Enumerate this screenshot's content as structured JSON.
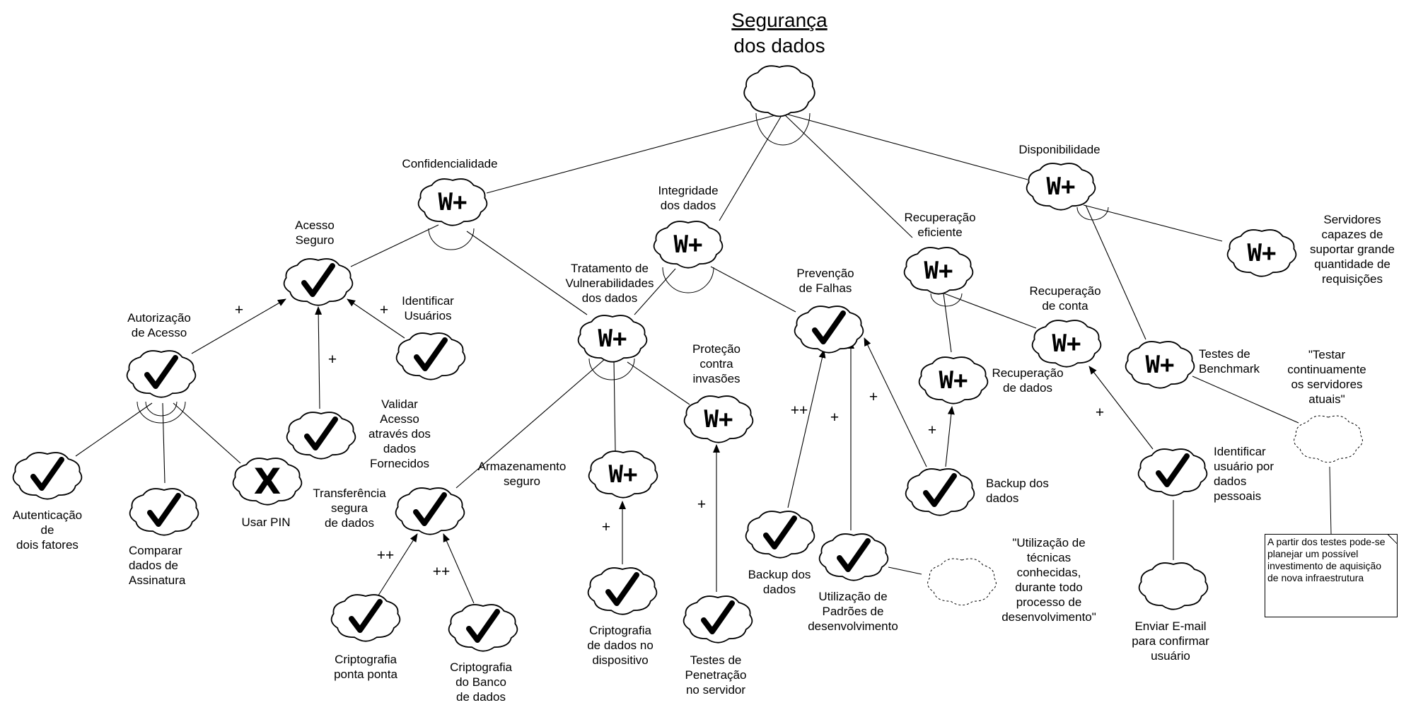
{
  "diagram": {
    "title_line1": "Segurança",
    "title_line2": "dos dados",
    "nodes": [
      {
        "id": "root",
        "lines": [],
        "type": "cloud",
        "glyph": ""
      },
      {
        "id": "conf",
        "lines": [
          "Confidencialidade"
        ],
        "type": "cloud",
        "glyph": "W+"
      },
      {
        "id": "integ",
        "lines": [
          "Integridade",
          "dos dados"
        ],
        "type": "cloud",
        "glyph": "W+"
      },
      {
        "id": "receff",
        "lines": [
          "Recuperação",
          "eficiente"
        ],
        "type": "cloud",
        "glyph": "W+"
      },
      {
        "id": "disp",
        "lines": [
          "Disponibilidade"
        ],
        "type": "cloud",
        "glyph": "W+"
      },
      {
        "id": "acesso",
        "lines": [
          "Acesso",
          "Seguro"
        ],
        "type": "cloud",
        "glyph": "check"
      },
      {
        "id": "autoriz",
        "lines": [
          "Autorização",
          "de Acesso"
        ],
        "type": "cloud",
        "glyph": "check"
      },
      {
        "id": "identif",
        "lines": [
          "Identificar",
          "Usuários"
        ],
        "type": "cloud",
        "glyph": "check"
      },
      {
        "id": "validar",
        "lines": [
          "Validar",
          "Acesso",
          "através dos",
          "dados",
          "Fornecidos"
        ],
        "type": "cloud",
        "glyph": "check"
      },
      {
        "id": "autent",
        "lines": [
          "Autenticação",
          "de",
          "dois fatores"
        ],
        "type": "cloud",
        "glyph": "check"
      },
      {
        "id": "comparar",
        "lines": [
          "Comparar",
          "dados de",
          "Assinatura"
        ],
        "type": "cloud",
        "glyph": "check"
      },
      {
        "id": "pin",
        "lines": [
          "Usar PIN"
        ],
        "type": "cloud",
        "glyph": "X"
      },
      {
        "id": "tratvul",
        "lines": [
          "Tratamento de",
          "Vulnerabilidades",
          "dos dados"
        ],
        "type": "cloud",
        "glyph": "W+"
      },
      {
        "id": "prevf",
        "lines": [
          "Prevenção",
          "de Falhas"
        ],
        "type": "cloud",
        "glyph": "check"
      },
      {
        "id": "transf",
        "lines": [
          "Transferência",
          "segura",
          "de dados"
        ],
        "type": "cloud",
        "glyph": "check"
      },
      {
        "id": "armaz",
        "lines": [
          "Armazenamento",
          "seguro"
        ],
        "type": "cloud",
        "glyph": "W+"
      },
      {
        "id": "protec",
        "lines": [
          "Proteção",
          "contra",
          "invasões"
        ],
        "type": "cloud",
        "glyph": "W+"
      },
      {
        "id": "criptpp",
        "lines": [
          "Criptografia",
          "ponta ponta"
        ],
        "type": "cloud",
        "glyph": "check"
      },
      {
        "id": "criptbd",
        "lines": [
          "Criptografia",
          "do Banco",
          "de dados"
        ],
        "type": "cloud",
        "glyph": "check"
      },
      {
        "id": "criptdisp",
        "lines": [
          "Criptografia",
          "de dados no",
          "dispositivo"
        ],
        "type": "cloud",
        "glyph": "check"
      },
      {
        "id": "testpen",
        "lines": [
          "Testes de",
          "Penetração",
          "no servidor"
        ],
        "type": "cloud",
        "glyph": "check"
      },
      {
        "id": "backup1",
        "lines": [
          "Backup dos",
          "dados"
        ],
        "type": "cloud",
        "glyph": "check"
      },
      {
        "id": "utilpad",
        "lines": [
          "Utilização de",
          "Padrões de",
          "desenvolvimento"
        ],
        "type": "cloud",
        "glyph": "check"
      },
      {
        "id": "recdados",
        "lines": [
          "Recuperação",
          "de dados"
        ],
        "type": "cloud",
        "glyph": "W+"
      },
      {
        "id": "recconta",
        "lines": [
          "Recuperação",
          "de conta"
        ],
        "type": "cloud",
        "glyph": "W+"
      },
      {
        "id": "backup2",
        "lines": [
          "Backup dos",
          "dados"
        ],
        "type": "cloud",
        "glyph": "check"
      },
      {
        "id": "identpess",
        "lines": [
          "Identificar",
          "usuário por",
          "dados",
          "pessoais"
        ],
        "type": "cloud",
        "glyph": "check"
      },
      {
        "id": "email",
        "lines": [
          "Enviar E-mail",
          "para confirmar",
          "usuário"
        ],
        "type": "cloud",
        "glyph": ""
      },
      {
        "id": "servid",
        "lines": [
          "Servidores",
          "capazes de",
          "suportar grande",
          "quantidade de",
          "requisições"
        ],
        "type": "cloud",
        "glyph": "W+"
      },
      {
        "id": "testbench",
        "lines": [
          "Testes de",
          "Benchmark"
        ],
        "type": "cloud",
        "glyph": "W+"
      },
      {
        "id": "claimutil",
        "lines": [
          "\"Utilização de",
          "técnicas",
          "conhecidas,",
          "durante todo",
          "processo de",
          "desenvolvimento\""
        ],
        "type": "claim",
        "glyph": ""
      },
      {
        "id": "claimtest",
        "lines": [
          "\"Testar",
          "continuamente",
          "os servidores",
          "atuais\""
        ],
        "type": "claim",
        "glyph": ""
      }
    ],
    "edges": [
      {
        "from": "conf",
        "to": "root",
        "label": ""
      },
      {
        "from": "integ",
        "to": "root",
        "label": ""
      },
      {
        "from": "receff",
        "to": "root",
        "label": ""
      },
      {
        "from": "disp",
        "to": "root",
        "label": ""
      },
      {
        "from": "acesso",
        "to": "conf",
        "label": ""
      },
      {
        "from": "tratvul",
        "to": "conf",
        "label": ""
      },
      {
        "from": "tratvul",
        "to": "integ",
        "label": ""
      },
      {
        "from": "prevf",
        "to": "integ",
        "label": ""
      },
      {
        "from": "recdados",
        "to": "receff",
        "label": ""
      },
      {
        "from": "recconta",
        "to": "receff",
        "label": ""
      },
      {
        "from": "servid",
        "to": "disp",
        "label": ""
      },
      {
        "from": "testbench",
        "to": "disp",
        "label": ""
      },
      {
        "from": "autoriz",
        "to": "acesso",
        "label": "+"
      },
      {
        "from": "validar",
        "to": "acesso",
        "label": "+"
      },
      {
        "from": "identif",
        "to": "acesso",
        "label": "+"
      },
      {
        "from": "autent",
        "to": "autoriz",
        "label": ""
      },
      {
        "from": "comparar",
        "to": "autoriz",
        "label": ""
      },
      {
        "from": "pin",
        "to": "autoriz",
        "label": ""
      },
      {
        "from": "transf",
        "to": "tratvul",
        "label": ""
      },
      {
        "from": "armaz",
        "to": "tratvul",
        "label": ""
      },
      {
        "from": "protec",
        "to": "tratvul",
        "label": ""
      },
      {
        "from": "criptpp",
        "to": "transf",
        "label": "++"
      },
      {
        "from": "criptbd",
        "to": "transf",
        "label": "++"
      },
      {
        "from": "criptdisp",
        "to": "armaz",
        "label": "+"
      },
      {
        "from": "testpen",
        "to": "protec",
        "label": "+"
      },
      {
        "from": "backup1",
        "to": "prevf",
        "label": "++"
      },
      {
        "from": "utilpad",
        "to": "prevf",
        "label": "+"
      },
      {
        "from": "backup2",
        "to": "prevf",
        "label": "+"
      },
      {
        "from": "backup2",
        "to": "recdados",
        "label": "+"
      },
      {
        "from": "identpess",
        "to": "recconta",
        "label": "+"
      },
      {
        "from": "email",
        "to": "identpess",
        "label": ""
      },
      {
        "from": "claimutil",
        "to": "utilpad",
        "label": ""
      },
      {
        "from": "claimtest",
        "to": "testbench",
        "label": ""
      }
    ],
    "note_text": "A partir dos testes pode-se planejar um possível investimento de aquisição de nova infraestrutura"
  }
}
